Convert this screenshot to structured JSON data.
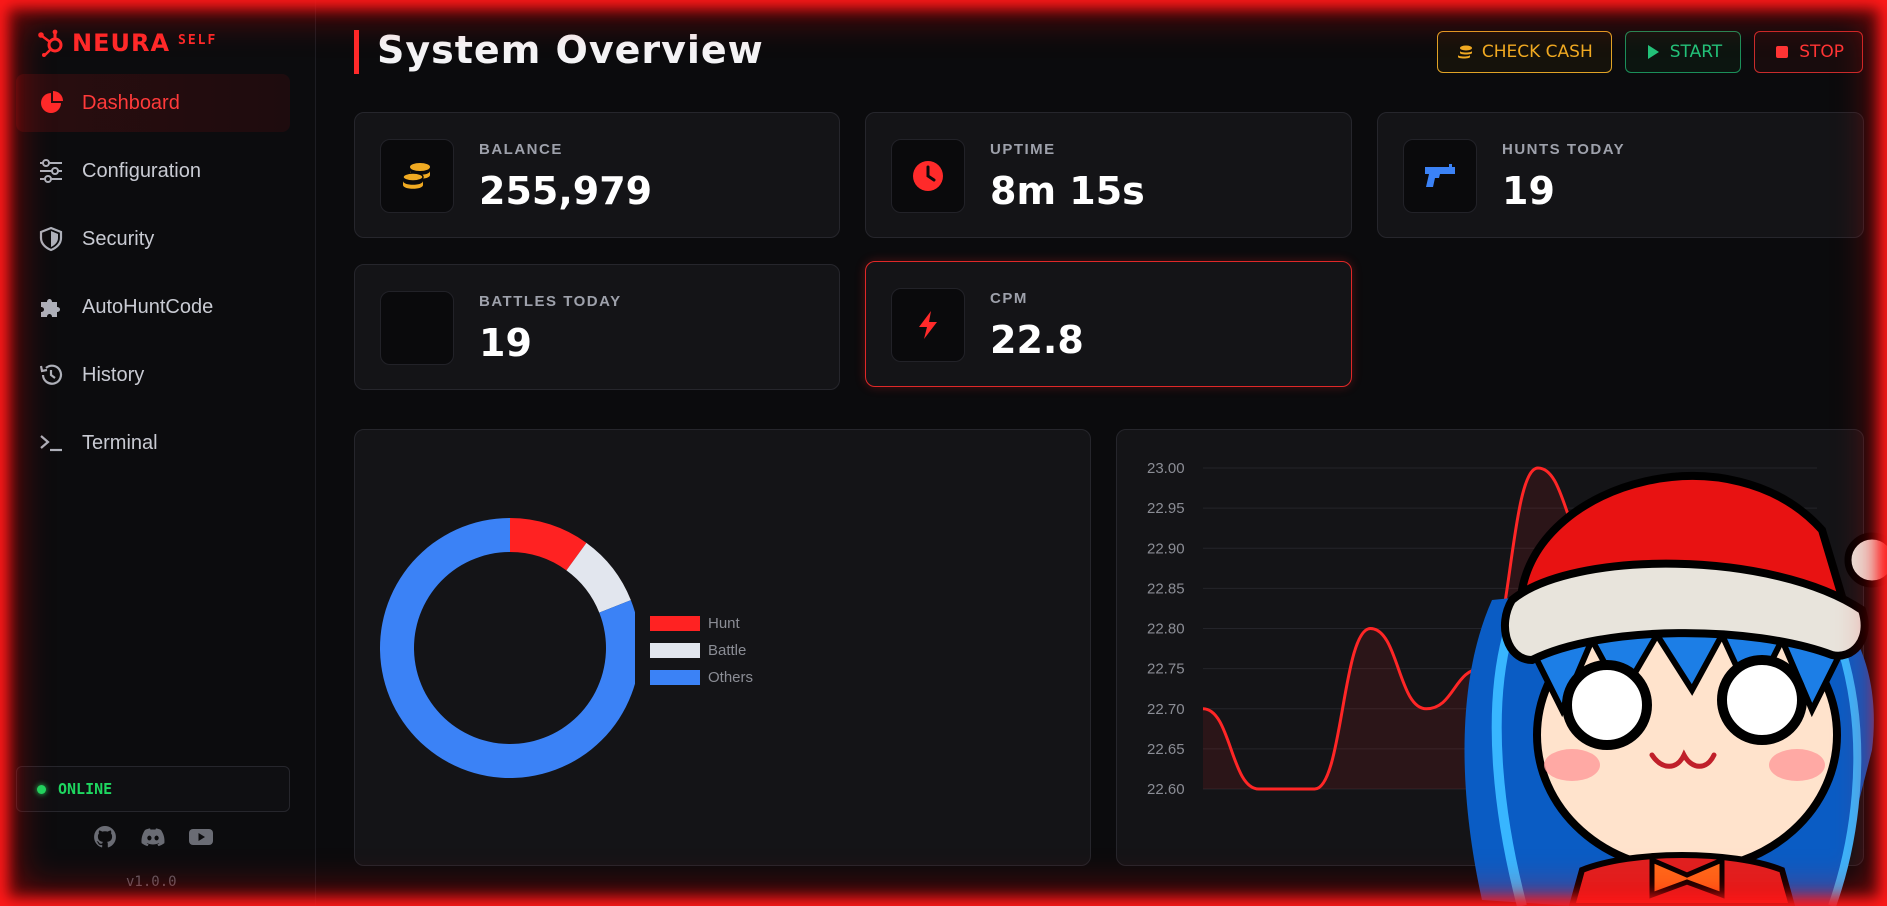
{
  "brand": {
    "name": "NEURA",
    "tag": "SELF"
  },
  "sidebar": {
    "items": [
      {
        "label": "Dashboard",
        "icon": "pie-chart-icon",
        "active": true
      },
      {
        "label": "Configuration",
        "icon": "sliders-icon"
      },
      {
        "label": "Security",
        "icon": "shield-icon"
      },
      {
        "label": "AutoHuntCode",
        "icon": "puzzle-icon"
      },
      {
        "label": "History",
        "icon": "history-icon"
      },
      {
        "label": "Terminal",
        "icon": "terminal-icon"
      }
    ],
    "status": "ONLINE",
    "socials": [
      "github-icon",
      "discord-icon",
      "youtube-icon"
    ],
    "version": "v1.0.0"
  },
  "header": {
    "title": "System Overview",
    "buttons": {
      "check_cash": "CHECK CASH",
      "start": "START",
      "stop": "STOP"
    }
  },
  "stats": {
    "balance": {
      "label": "BALANCE",
      "value": "255,979",
      "icon": "coins-icon"
    },
    "uptime": {
      "label": "UPTIME",
      "value": "8m 15s",
      "icon": "clock-icon"
    },
    "hunts": {
      "label": "HUNTS TODAY",
      "value": "19",
      "icon": "gun-icon"
    },
    "battles": {
      "label": "BATTLES TODAY",
      "value": "19"
    },
    "cpm": {
      "label": "CPM",
      "value": "22.8",
      "icon": "bolt-icon"
    }
  },
  "colors": {
    "accent": "#ff2a2a",
    "hunt": "#ff2222",
    "battle": "#e2e6ee",
    "others": "#3b82f6",
    "online": "#1ed760"
  },
  "chart_data": [
    {
      "type": "pie",
      "categories": [
        "Hunt",
        "Battle",
        "Others"
      ],
      "values": [
        10,
        9,
        81
      ]
    },
    {
      "type": "area",
      "x": [
        1,
        2,
        3,
        4,
        5,
        6,
        7,
        8,
        9,
        10,
        11,
        12
      ],
      "values": [
        22.7,
        22.6,
        22.6,
        22.8,
        22.7,
        22.75,
        23.0,
        22.9,
        22.9,
        22.92,
        22.85,
        22.9
      ],
      "ylim": [
        22.6,
        23.0
      ],
      "yticks": [
        "23.00",
        "22.95",
        "22.90",
        "22.85",
        "22.80",
        "22.75",
        "22.70",
        "22.65",
        "22.60"
      ],
      "grid": true
    }
  ]
}
